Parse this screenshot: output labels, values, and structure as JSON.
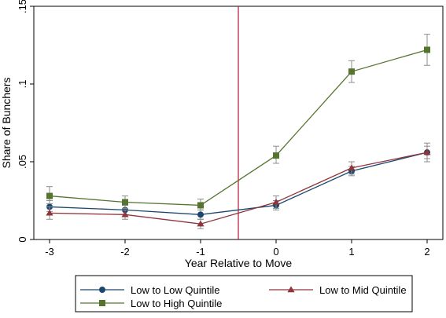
{
  "chart_data": {
    "type": "line",
    "xlabel": "Year Relative to Move",
    "ylabel": "Share of Bunchers",
    "x": [
      -3,
      -2,
      -1,
      0,
      1,
      2
    ],
    "xlim": [
      -3,
      2
    ],
    "ylim": [
      0,
      0.15
    ],
    "x_ticks": [
      "-3",
      "-2",
      "-1",
      "0",
      "1",
      "2"
    ],
    "y_ticks": [
      "0",
      ".05",
      ".1",
      ".15"
    ],
    "y_tick_values": [
      0,
      0.05,
      0.1,
      0.15
    ],
    "grid": false,
    "vline": {
      "x": -0.5,
      "color": "#b5163a"
    },
    "legend_position": "bottom",
    "series": [
      {
        "name": "Low to Low Quintile",
        "color": "#1a476f",
        "marker": "circle",
        "values": [
          0.021,
          0.019,
          0.016,
          0.022,
          0.044,
          0.056
        ],
        "ci": [
          [
            0.018,
            0.025
          ],
          [
            0.016,
            0.022
          ],
          [
            0.013,
            0.019
          ],
          [
            0.019,
            0.025
          ],
          [
            0.041,
            0.047
          ],
          [
            0.052,
            0.06
          ]
        ]
      },
      {
        "name": "Low to Mid Quintile",
        "color": "#90353b",
        "marker": "triangle",
        "values": [
          0.017,
          0.016,
          0.01,
          0.024,
          0.046,
          0.056
        ],
        "ci": [
          [
            0.013,
            0.021
          ],
          [
            0.013,
            0.019
          ],
          [
            0.007,
            0.013
          ],
          [
            0.02,
            0.028
          ],
          [
            0.042,
            0.05
          ],
          [
            0.05,
            0.062
          ]
        ]
      },
      {
        "name": "Low to High Quintile",
        "color": "#55752f",
        "marker": "square",
        "values": [
          0.028,
          0.024,
          0.022,
          0.054,
          0.108,
          0.122
        ],
        "ci": [
          [
            0.023,
            0.034
          ],
          [
            0.02,
            0.028
          ],
          [
            0.019,
            0.026
          ],
          [
            0.049,
            0.06
          ],
          [
            0.101,
            0.115
          ],
          [
            0.112,
            0.132
          ]
        ]
      }
    ]
  }
}
